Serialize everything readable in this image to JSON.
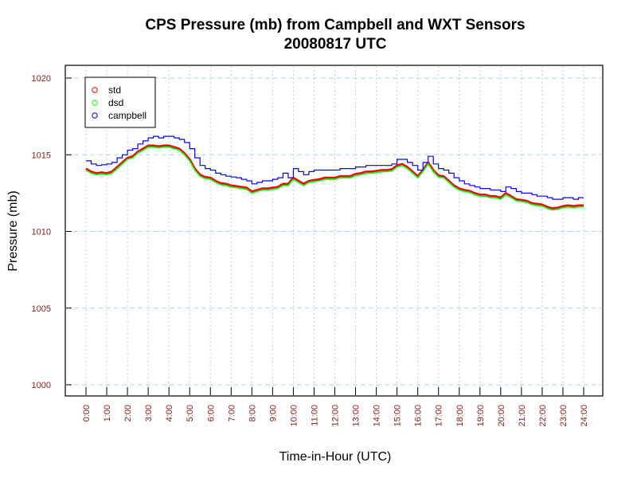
{
  "chart_data": {
    "type": "line",
    "title": "CPS Pressure (mb) from Campbell and WXT Sensors",
    "subtitle": "20080817  UTC",
    "xlabel": "Time-in-Hour (UTC)",
    "ylabel": "Pressure (mb)",
    "xlim": [
      0,
      24
    ],
    "ylim": [
      1000,
      1020
    ],
    "x_ticks": [
      0,
      1,
      2,
      3,
      4,
      5,
      6,
      7,
      8,
      9,
      10,
      11,
      12,
      13,
      14,
      15,
      16,
      17,
      18,
      19,
      20,
      21,
      22,
      23,
      24
    ],
    "x_tick_labels": [
      "0:00",
      "1:00",
      "2:00",
      "3:00",
      "4:00",
      "5:00",
      "6:00",
      "7:00",
      "8:00",
      "9:00",
      "10:00",
      "11:00",
      "12:00",
      "13:00",
      "14:00",
      "15:00",
      "16:00",
      "17:00",
      "18:00",
      "19:00",
      "20:00",
      "21:00",
      "22:00",
      "23:00",
      "24:00"
    ],
    "y_ticks": [
      1000,
      1005,
      1010,
      1015,
      1020
    ],
    "y_tick_labels": [
      "1000",
      "1005",
      "1010",
      "1015",
      "1020"
    ],
    "grid": true,
    "legend_position": "top-left",
    "colors": {
      "std": "#ff0000",
      "dsd": "#00ff00",
      "campbell": "#0000ff",
      "grid": "#add8e6",
      "tick_label": "#8b1a1a"
    },
    "series": [
      {
        "name": "std",
        "x": [
          0,
          0.25,
          0.5,
          0.75,
          1,
          1.25,
          1.5,
          1.75,
          2,
          2.25,
          2.5,
          2.75,
          3,
          3.25,
          3.5,
          3.75,
          4,
          4.25,
          4.5,
          4.75,
          5,
          5.25,
          5.5,
          5.75,
          6,
          6.25,
          6.5,
          6.75,
          7,
          7.25,
          7.5,
          7.75,
          8,
          8.25,
          8.5,
          8.75,
          9,
          9.25,
          9.5,
          9.75,
          10,
          10.25,
          10.5,
          10.75,
          11,
          11.25,
          11.5,
          11.75,
          12,
          12.25,
          12.5,
          12.75,
          13,
          13.25,
          13.5,
          13.75,
          14,
          14.25,
          14.5,
          14.75,
          15,
          15.25,
          15.5,
          15.75,
          16,
          16.25,
          16.5,
          16.75,
          17,
          17.25,
          17.5,
          17.75,
          18,
          18.25,
          18.5,
          18.75,
          19,
          19.25,
          19.5,
          19.75,
          20,
          20.25,
          20.5,
          20.75,
          21,
          21.25,
          21.5,
          21.75,
          22,
          22.25,
          22.5,
          22.75,
          23,
          23.25,
          23.5,
          23.75,
          24
        ],
        "values": [
          1014.1,
          1013.9,
          1013.8,
          1013.85,
          1013.8,
          1013.9,
          1014.2,
          1014.5,
          1014.8,
          1014.9,
          1015.2,
          1015.4,
          1015.6,
          1015.6,
          1015.55,
          1015.6,
          1015.6,
          1015.5,
          1015.4,
          1015.1,
          1014.7,
          1014.1,
          1013.7,
          1013.55,
          1013.5,
          1013.3,
          1013.15,
          1013.1,
          1013.0,
          1012.95,
          1012.9,
          1012.85,
          1012.6,
          1012.7,
          1012.8,
          1012.8,
          1012.85,
          1012.9,
          1013.1,
          1013.1,
          1013.5,
          1013.3,
          1013.1,
          1013.3,
          1013.35,
          1013.4,
          1013.5,
          1013.5,
          1013.5,
          1013.6,
          1013.6,
          1013.6,
          1013.75,
          1013.8,
          1013.9,
          1013.9,
          1013.95,
          1014.0,
          1014.0,
          1014.05,
          1014.3,
          1014.4,
          1014.2,
          1013.9,
          1013.6,
          1014.0,
          1014.5,
          1014.0,
          1013.65,
          1013.6,
          1013.3,
          1013.0,
          1012.8,
          1012.7,
          1012.65,
          1012.5,
          1012.4,
          1012.4,
          1012.3,
          1012.3,
          1012.2,
          1012.5,
          1012.3,
          1012.1,
          1012.05,
          1012.0,
          1011.85,
          1011.8,
          1011.75,
          1011.6,
          1011.5,
          1011.55,
          1011.65,
          1011.7,
          1011.65,
          1011.7,
          1011.7
        ]
      },
      {
        "name": "dsd",
        "x": [
          0,
          0.25,
          0.5,
          0.75,
          1,
          1.25,
          1.5,
          1.75,
          2,
          2.25,
          2.5,
          2.75,
          3,
          3.25,
          3.5,
          3.75,
          4,
          4.25,
          4.5,
          4.75,
          5,
          5.25,
          5.5,
          5.75,
          6,
          6.25,
          6.5,
          6.75,
          7,
          7.25,
          7.5,
          7.75,
          8,
          8.25,
          8.5,
          8.75,
          9,
          9.25,
          9.5,
          9.75,
          10,
          10.25,
          10.5,
          10.75,
          11,
          11.25,
          11.5,
          11.75,
          12,
          12.25,
          12.5,
          12.75,
          13,
          13.25,
          13.5,
          13.75,
          14,
          14.25,
          14.5,
          14.75,
          15,
          15.25,
          15.5,
          15.75,
          16,
          16.25,
          16.5,
          16.75,
          17,
          17.25,
          17.5,
          17.75,
          18,
          18.25,
          18.5,
          18.75,
          19,
          19.25,
          19.5,
          19.75,
          20,
          20.25,
          20.5,
          20.75,
          21,
          21.25,
          21.5,
          21.75,
          22,
          22.25,
          22.5,
          22.75,
          23,
          23.25,
          23.5,
          23.75,
          24
        ],
        "values": [
          1014.0,
          1013.8,
          1013.7,
          1013.75,
          1013.7,
          1013.8,
          1014.1,
          1014.4,
          1014.7,
          1014.8,
          1015.1,
          1015.3,
          1015.5,
          1015.5,
          1015.45,
          1015.5,
          1015.5,
          1015.4,
          1015.3,
          1015.0,
          1014.6,
          1014.0,
          1013.6,
          1013.45,
          1013.4,
          1013.2,
          1013.05,
          1013.0,
          1012.9,
          1012.85,
          1012.8,
          1012.75,
          1012.5,
          1012.6,
          1012.7,
          1012.7,
          1012.75,
          1012.8,
          1013.0,
          1013.0,
          1013.4,
          1013.2,
          1013.0,
          1013.2,
          1013.25,
          1013.3,
          1013.4,
          1013.4,
          1013.4,
          1013.5,
          1013.5,
          1013.5,
          1013.65,
          1013.7,
          1013.8,
          1013.8,
          1013.85,
          1013.9,
          1013.9,
          1013.95,
          1014.2,
          1014.3,
          1014.1,
          1013.8,
          1013.5,
          1013.9,
          1014.4,
          1013.9,
          1013.55,
          1013.5,
          1013.2,
          1012.9,
          1012.7,
          1012.6,
          1012.55,
          1012.4,
          1012.3,
          1012.3,
          1012.2,
          1012.2,
          1012.1,
          1012.4,
          1012.2,
          1012.0,
          1011.95,
          1011.9,
          1011.75,
          1011.7,
          1011.65,
          1011.5,
          1011.4,
          1011.45,
          1011.55,
          1011.6,
          1011.55,
          1011.6,
          1011.6
        ]
      },
      {
        "name": "campbell",
        "x": [
          0,
          0.25,
          0.5,
          0.75,
          1,
          1.25,
          1.5,
          1.75,
          2,
          2.25,
          2.5,
          2.75,
          3,
          3.25,
          3.5,
          3.75,
          4,
          4.25,
          4.5,
          4.75,
          5,
          5.25,
          5.5,
          5.75,
          6,
          6.25,
          6.5,
          6.75,
          7,
          7.25,
          7.5,
          7.75,
          8,
          8.25,
          8.5,
          8.75,
          9,
          9.25,
          9.5,
          9.75,
          10,
          10.25,
          10.5,
          10.75,
          11,
          11.25,
          11.5,
          11.75,
          12,
          12.25,
          12.5,
          12.75,
          13,
          13.25,
          13.5,
          13.75,
          14,
          14.25,
          14.5,
          14.75,
          15,
          15.25,
          15.5,
          15.75,
          16,
          16.25,
          16.5,
          16.75,
          17,
          17.25,
          17.5,
          17.75,
          18,
          18.25,
          18.5,
          18.75,
          19,
          19.25,
          19.5,
          19.75,
          20,
          20.25,
          20.5,
          20.75,
          21,
          21.25,
          21.5,
          21.75,
          22,
          22.25,
          22.5,
          22.75,
          23,
          23.25,
          23.5,
          23.75,
          24
        ],
        "values": [
          1014.6,
          1014.4,
          1014.3,
          1014.35,
          1014.4,
          1014.5,
          1014.8,
          1015.0,
          1015.3,
          1015.4,
          1015.7,
          1015.9,
          1016.1,
          1016.2,
          1016.1,
          1016.2,
          1016.2,
          1016.1,
          1016.0,
          1015.8,
          1015.4,
          1014.8,
          1014.3,
          1014.1,
          1014.0,
          1013.8,
          1013.7,
          1013.6,
          1013.55,
          1013.5,
          1013.4,
          1013.3,
          1013.1,
          1013.2,
          1013.3,
          1013.3,
          1013.4,
          1013.5,
          1013.8,
          1013.5,
          1014.1,
          1013.9,
          1013.7,
          1013.9,
          1014.0,
          1014.0,
          1014.0,
          1014.0,
          1014.0,
          1014.1,
          1014.1,
          1014.1,
          1014.2,
          1014.2,
          1014.3,
          1014.3,
          1014.3,
          1014.3,
          1014.3,
          1014.4,
          1014.7,
          1014.7,
          1014.5,
          1014.3,
          1014.0,
          1014.5,
          1014.9,
          1014.4,
          1014.1,
          1014.0,
          1013.8,
          1013.5,
          1013.3,
          1013.1,
          1013.0,
          1012.9,
          1012.8,
          1012.8,
          1012.7,
          1012.7,
          1012.6,
          1012.9,
          1012.8,
          1012.6,
          1012.5,
          1012.5,
          1012.4,
          1012.3,
          1012.3,
          1012.2,
          1012.1,
          1012.1,
          1012.2,
          1012.2,
          1012.1,
          1012.2,
          1012.2
        ]
      }
    ]
  }
}
